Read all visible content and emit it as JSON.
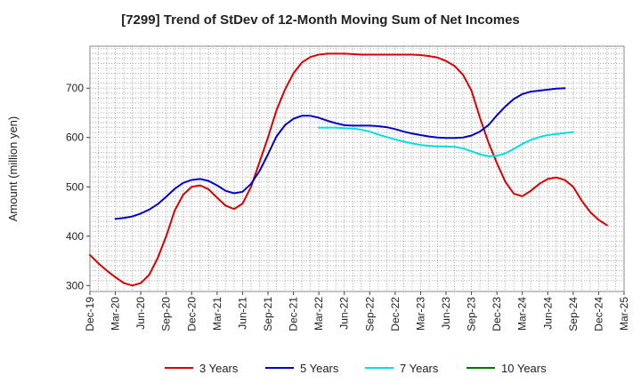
{
  "chart_data": {
    "type": "line",
    "title": "[7299]  Trend of StDev of 12-Month Moving Sum of Net Incomes",
    "ylabel": "Amount (million yen)",
    "xlabel": "",
    "ylim": [
      288,
      785
    ],
    "yticks": [
      300,
      400,
      500,
      600,
      700
    ],
    "x_ticks": [
      "Dec-19",
      "Mar-20",
      "Jun-20",
      "Sep-20",
      "Dec-20",
      "Mar-21",
      "Jun-21",
      "Sep-21",
      "Dec-21",
      "Mar-22",
      "Jun-22",
      "Sep-22",
      "Dec-22",
      "Mar-23",
      "Jun-23",
      "Sep-23",
      "Dec-23",
      "Mar-24",
      "Jun-24",
      "Sep-24",
      "Dec-24",
      "Mar-25"
    ],
    "grid": true,
    "legend_position": "bottom",
    "series": [
      {
        "name": "3 Years",
        "color": "#dd0000",
        "start_month": 0,
        "values": [
          362,
          345,
          330,
          317,
          305,
          300,
          305,
          322,
          356,
          400,
          452,
          484,
          500,
          503,
          495,
          478,
          462,
          455,
          466,
          500,
          550,
          600,
          655,
          697,
          730,
          752,
          763,
          768,
          770,
          770,
          770,
          769,
          768,
          768,
          768,
          768,
          768,
          768,
          768,
          767,
          765,
          762,
          755,
          745,
          727,
          695,
          640,
          590,
          548,
          510,
          486,
          481,
          492,
          506,
          516,
          519,
          514,
          500,
          472,
          449,
          433,
          422
        ]
      },
      {
        "name": "5 Years",
        "color": "#0000cc",
        "start_month": 3,
        "values": [
          435,
          437,
          440,
          446,
          454,
          465,
          480,
          496,
          508,
          514,
          516,
          512,
          503,
          492,
          487,
          490,
          506,
          532,
          566,
          602,
          625,
          638,
          644,
          644,
          640,
          634,
          629,
          625,
          624,
          624,
          624,
          623,
          621,
          617,
          612,
          608,
          605,
          602,
          600,
          599,
          599,
          600,
          604,
          612,
          625,
          645,
          663,
          678,
          688,
          693,
          695,
          697,
          699,
          700
        ]
      },
      {
        "name": "7 Years",
        "color": "#00e0e0",
        "start_month": 27,
        "values": [
          620,
          620,
          620,
          619,
          618,
          616,
          612,
          606,
          601,
          596,
          592,
          588,
          585,
          583,
          582,
          582,
          581,
          578,
          572,
          566,
          562,
          563,
          568,
          577,
          587,
          595,
          601,
          605,
          607,
          609,
          611
        ]
      },
      {
        "name": "10 Years",
        "color": "#007700",
        "start_month": 0,
        "values": []
      }
    ]
  }
}
